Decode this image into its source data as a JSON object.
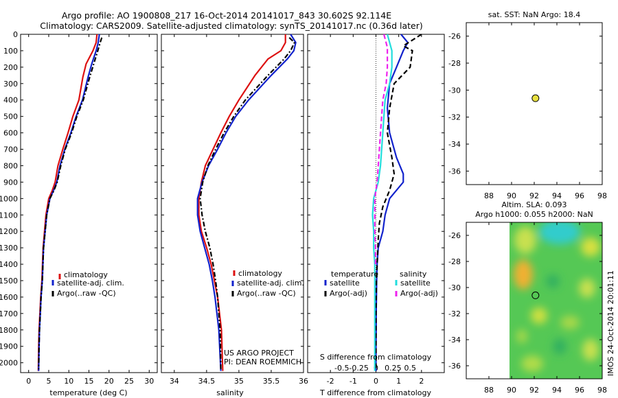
{
  "header": {
    "title_line1": "Argo profile: AO 1900808_217 16-Oct-2014 20141017_843 30.602S 92.114E",
    "title_line2": "Climatology: CARS2009. Satellite-adjusted climatology: synTS_20141017.nc (0.36d later)"
  },
  "colors": {
    "climatology": "#dd1111",
    "satellite": "#1122cc",
    "argo": "#000000",
    "satellite_salinity": "#22dddd",
    "argo_salinity": "#ee22ee",
    "marker": "#e8e040"
  },
  "chart_data": [
    {
      "type": "line",
      "id": "temperature",
      "xlabel": "temperature (deg C)",
      "xlim": [
        -2,
        32
      ],
      "ylim": [
        2060,
        0
      ],
      "xticks": [
        "0",
        "5",
        "10",
        "15",
        "20",
        "25",
        "30"
      ],
      "xtick_values": [
        0,
        5,
        10,
        15,
        20,
        25,
        30
      ],
      "yticks": [
        "0",
        "100",
        "200",
        "300",
        "400",
        "500",
        "600",
        "700",
        "800",
        "900",
        "1000",
        "1100",
        "1200",
        "1300",
        "1400",
        "1500",
        "1600",
        "1700",
        "1800",
        "1900",
        "2000"
      ],
      "ytick_values": [
        0,
        100,
        200,
        300,
        400,
        500,
        600,
        700,
        800,
        900,
        1000,
        1100,
        1200,
        1300,
        1400,
        1500,
        1600,
        1700,
        1800,
        1900,
        2000
      ],
      "legend": [
        "climatology",
        "satellite-adj. clim.",
        "Argo(..raw -QC)"
      ],
      "series": [
        {
          "name": "climatology",
          "color_key": "climatology",
          "style": "solid",
          "x": [
            17.0,
            16.8,
            16.0,
            14.3,
            13.5,
            12.5,
            11.0,
            9.8,
            8.5,
            7.3,
            6.6,
            5.9,
            5.0,
            4.3,
            3.6,
            3.3,
            3.0,
            2.8,
            2.6,
            2.5,
            2.4
          ],
          "y": [
            0,
            50,
            100,
            180,
            260,
            400,
            500,
            600,
            700,
            800,
            900,
            950,
            1000,
            1100,
            1300,
            1500,
            1600,
            1700,
            1800,
            1900,
            2050
          ]
        },
        {
          "name": "satellite-adj. clim.",
          "color_key": "satellite",
          "style": "solid",
          "x": [
            17.6,
            17.3,
            16.8,
            15.7,
            14.8,
            13.4,
            11.8,
            10.5,
            9.0,
            7.8,
            7.0,
            6.2,
            5.3,
            4.5,
            3.7,
            3.4,
            3.1,
            2.9,
            2.7,
            2.6,
            2.5
          ],
          "y": [
            0,
            50,
            100,
            180,
            260,
            400,
            500,
            600,
            700,
            800,
            900,
            950,
            1000,
            1100,
            1300,
            1500,
            1600,
            1700,
            1800,
            1900,
            2050
          ]
        },
        {
          "name": "Argo(..raw -QC)",
          "color_key": "argo",
          "style": "dashdot",
          "x": [
            18.2,
            17.8,
            17.2,
            16.2,
            15.2,
            13.6,
            12.0,
            10.7,
            9.1,
            8.0,
            7.1,
            6.3,
            5.3,
            4.5,
            3.7,
            3.4,
            3.1,
            2.9,
            2.7,
            2.6,
            2.5
          ],
          "y": [
            20,
            50,
            100,
            180,
            260,
            400,
            500,
            600,
            700,
            800,
            900,
            950,
            1000,
            1100,
            1300,
            1500,
            1600,
            1700,
            1800,
            1900,
            2040
          ]
        }
      ]
    },
    {
      "type": "line",
      "id": "salinity",
      "xlabel": "salinity",
      "xlim": [
        33.8,
        36.0
      ],
      "ylim": [
        2060,
        0
      ],
      "xticks": [
        "34",
        "34.5",
        "35",
        "35.5",
        "36"
      ],
      "xtick_values": [
        34,
        34.5,
        35,
        35.5,
        36
      ],
      "legend": [
        "climatology",
        "satellite-adj. clim.",
        "Argo(..raw -QC)"
      ],
      "annotation_line1": "US ARGO PROJECT",
      "annotation_line2": "PI: DEAN ROEMMICH",
      "series": [
        {
          "name": "climatology",
          "color_key": "climatology",
          "style": "solid",
          "x": [
            35.72,
            35.72,
            35.65,
            35.45,
            35.25,
            35.0,
            34.85,
            34.72,
            34.6,
            34.48,
            34.42,
            34.38,
            34.38,
            34.42,
            34.5,
            34.57,
            34.62,
            34.67,
            34.7,
            34.73,
            34.75
          ],
          "y": [
            0,
            50,
            100,
            150,
            250,
            400,
            500,
            600,
            700,
            800,
            900,
            1000,
            1100,
            1200,
            1300,
            1400,
            1500,
            1600,
            1700,
            1800,
            2050
          ]
        },
        {
          "name": "satellite-adj. clim.",
          "color_key": "satellite",
          "style": "solid",
          "x": [
            35.8,
            35.88,
            35.85,
            35.75,
            35.5,
            35.15,
            34.95,
            34.8,
            34.67,
            34.53,
            34.43,
            34.36,
            34.36,
            34.4,
            34.47,
            34.54,
            34.59,
            34.63,
            34.66,
            34.69,
            34.72
          ],
          "y": [
            0,
            50,
            100,
            150,
            250,
            400,
            500,
            600,
            700,
            800,
            900,
            1000,
            1100,
            1200,
            1300,
            1400,
            1500,
            1600,
            1700,
            1800,
            2050
          ]
        },
        {
          "name": "Argo(..raw -QC)",
          "color_key": "argo",
          "style": "dashdot",
          "x": [
            35.78,
            35.86,
            35.8,
            35.7,
            35.45,
            35.1,
            34.92,
            34.77,
            34.64,
            34.52,
            34.44,
            34.4,
            34.43,
            34.48,
            34.55,
            34.6,
            34.64,
            34.67,
            34.69,
            34.71,
            34.72
          ],
          "y": [
            20,
            50,
            100,
            150,
            250,
            400,
            500,
            600,
            700,
            800,
            900,
            1000,
            1100,
            1200,
            1300,
            1400,
            1500,
            1600,
            1700,
            1800,
            2040
          ]
        }
      ]
    },
    {
      "type": "line",
      "id": "difference",
      "xlabel": "T difference from climatology",
      "xlabel_top": "S difference from climatology",
      "xlim": [
        -3.0,
        3.0
      ],
      "ylim": [
        2060,
        0
      ],
      "xticks": [
        "-2",
        "-1",
        "0",
        "1",
        "2"
      ],
      "xtick_values": [
        -2,
        -1,
        0,
        1,
        2
      ],
      "sticks": [
        "-0.5",
        "-0.25",
        "0",
        "0.25",
        "0.5"
      ],
      "stick_values": [
        -1.5,
        -0.75,
        0,
        0.75,
        1.5
      ],
      "legend_title_temperature": "temperature",
      "legend_title_salinity": "salinity",
      "legend": [
        "satellite",
        "Argo(-adj)",
        "satellite",
        "Argo(-adj)"
      ],
      "series": [
        {
          "name": "temperature satellite",
          "color_key": "satellite",
          "style": "solid",
          "x": [
            1.1,
            1.4,
            1.2,
            0.9,
            0.6,
            0.5,
            0.6,
            0.9,
            1.2,
            1.2,
            0.6,
            0.4,
            0.3,
            0.1,
            0.05,
            0.03,
            0.02,
            0.01,
            0.01,
            0.0,
            0.0
          ],
          "y": [
            0,
            50,
            100,
            200,
            300,
            450,
            600,
            750,
            850,
            900,
            1000,
            1100,
            1200,
            1300,
            1400,
            1500,
            1600,
            1700,
            1800,
            1900,
            2050
          ]
        },
        {
          "name": "temperature Argo(-adj)",
          "color_key": "argo",
          "style": "dashed",
          "x": [
            2.0,
            1.2,
            1.6,
            1.5,
            0.8,
            0.6,
            0.5,
            0.7,
            0.8,
            0.6,
            0.3,
            0.15,
            0.1,
            0.05,
            0.02,
            0.01,
            0.0,
            0.0,
            0.0,
            0.0
          ],
          "y": [
            0,
            70,
            100,
            200,
            300,
            450,
            600,
            750,
            850,
            950,
            1050,
            1150,
            1250,
            1400,
            1500,
            1600,
            1700,
            1800,
            1900,
            2040
          ]
        },
        {
          "name": "salinity satellite",
          "color_key": "satellite_salinity",
          "style": "solid",
          "x": [
            0.5,
            0.7,
            0.7,
            0.6,
            0.4,
            0.35,
            0.3,
            0.25,
            0.2,
            0.1,
            -0.1,
            -0.15,
            -0.1,
            -0.1,
            -0.05,
            -0.05,
            -0.05,
            -0.05,
            -0.05,
            -0.05
          ],
          "y": [
            0,
            100,
            200,
            300,
            400,
            500,
            600,
            700,
            800,
            900,
            1000,
            1100,
            1200,
            1300,
            1400,
            1500,
            1600,
            1700,
            1800,
            2050
          ]
        },
        {
          "name": "salinity Argo(-adj)",
          "color_key": "argo_salinity",
          "style": "dashed",
          "x": [
            0.35,
            0.5,
            0.5,
            0.45,
            0.3,
            0.25,
            0.2,
            0.15,
            0.1,
            0.05,
            -0.05,
            -0.05,
            -0.05,
            -0.02,
            -0.02
          ],
          "y": [
            0,
            80,
            200,
            300,
            400,
            500,
            600,
            700,
            800,
            900,
            1000,
            1100,
            1200,
            1300,
            1400
          ]
        }
      ]
    },
    {
      "type": "scatter",
      "id": "sst_map",
      "title": "sat. SST: NaN Argo: 18.4",
      "xlim": [
        86,
        98
      ],
      "ylim": [
        -37,
        -25
      ],
      "xticks": [
        "88",
        "90",
        "92",
        "94",
        "96",
        "98"
      ],
      "xtick_values": [
        88,
        90,
        92,
        94,
        96,
        98
      ],
      "yticks": [
        "-26",
        "-28",
        "-30",
        "-32",
        "-34",
        "-36"
      ],
      "ytick_values": [
        -26,
        -28,
        -30,
        -32,
        -34,
        -36
      ],
      "points": [
        {
          "x": 92.11,
          "y": -30.6
        }
      ]
    },
    {
      "type": "heatmap",
      "id": "sla_map",
      "title_line1": "Altim. SLA: 0.093",
      "title_line2": "Argo h1000: 0.055 h2000: NaN",
      "xlim": [
        86,
        98
      ],
      "ylim": [
        -37,
        -25
      ],
      "data_lon_range": [
        90,
        98
      ],
      "xticks": [
        "88",
        "90",
        "92",
        "94",
        "96",
        "98"
      ],
      "xtick_values": [
        88,
        90,
        92,
        94,
        96,
        98
      ],
      "yticks": [
        "-26",
        "-28",
        "-30",
        "-32",
        "-34",
        "-36"
      ],
      "ytick_values": [
        -26,
        -28,
        -30,
        -32,
        -34,
        -36
      ],
      "points": [
        {
          "x": 92.11,
          "y": -30.6
        }
      ],
      "stamp": "IMOS 24-Oct-2014 20:01:11"
    }
  ]
}
